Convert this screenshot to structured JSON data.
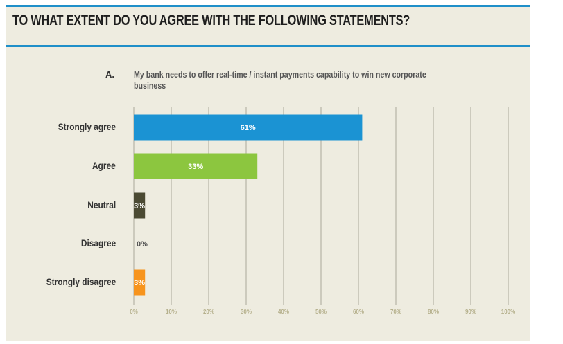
{
  "header": {
    "title": "TO WHAT EXTENT DO YOU AGREE WITH THE FOLLOWING STATEMENTS?"
  },
  "question": {
    "letter": "A.",
    "text": "My bank needs to offer real-time / instant payments capability to win new corporate business"
  },
  "chart_data": {
    "type": "bar",
    "orientation": "horizontal",
    "categories": [
      "Strongly agree",
      "Agree",
      "Neutral",
      "Disagree",
      "Strongly disagree"
    ],
    "values": [
      61,
      33,
      3,
      0,
      3
    ],
    "data_labels": [
      "61%",
      "33%",
      "3%",
      "0%",
      "3%"
    ],
    "colors": [
      "#1b93d3",
      "#8cc63f",
      "#4b4a33",
      "#8cc63f",
      "#f7941d"
    ],
    "xlim": [
      0,
      100
    ],
    "xticks": [
      0,
      10,
      20,
      30,
      40,
      50,
      60,
      70,
      80,
      90,
      100
    ],
    "xtick_labels": [
      "0%",
      "10%",
      "20%",
      "30%",
      "40%",
      "50%",
      "60%",
      "70%",
      "80%",
      "90%",
      "100%"
    ],
    "grid": true,
    "title": "TO WHAT EXTENT DO YOU AGREE WITH THE FOLLOWING STATEMENTS?"
  }
}
